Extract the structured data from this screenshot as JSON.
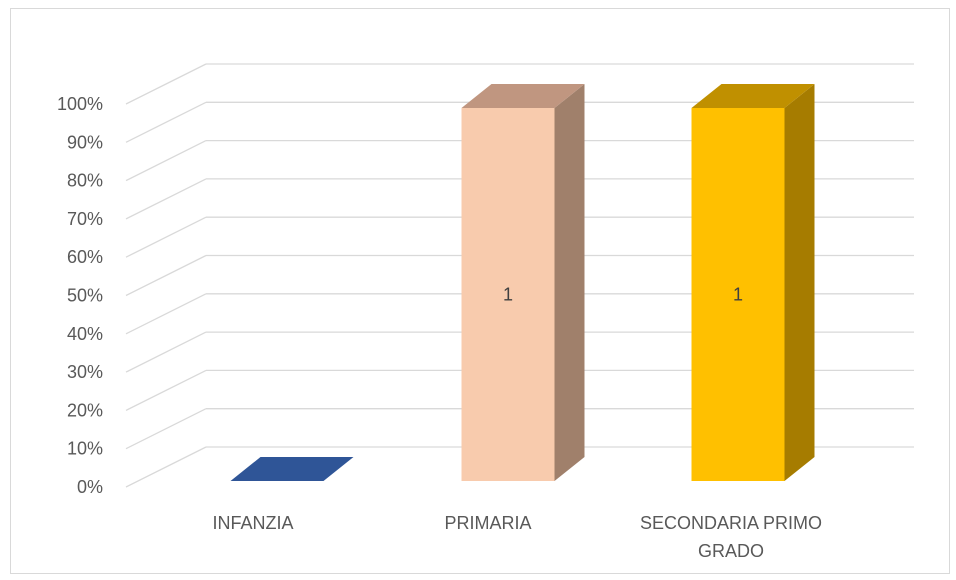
{
  "chart_data": {
    "type": "bar",
    "style": "3d-column",
    "categories": [
      "INFANZIA",
      "PRIMARIA",
      "SECONDARIA PRIMO GRADO"
    ],
    "values": [
      0,
      1,
      1
    ],
    "data_labels": [
      "",
      "1",
      "1"
    ],
    "ylim": [
      0,
      1
    ],
    "y_tick_values": [
      0,
      0.1,
      0.2,
      0.3,
      0.4,
      0.5,
      0.6,
      0.7,
      0.8,
      0.9,
      1.0
    ],
    "y_tick_labels": [
      "0%",
      "10%",
      "20%",
      "30%",
      "40%",
      "50%",
      "60%",
      "70%",
      "80%",
      "90%",
      "100%"
    ],
    "grid": true,
    "legend": "none",
    "colors": [
      {
        "front": "#2f5597",
        "side": "#203864",
        "top": "#2f5597"
      },
      {
        "front": "#f8cbad",
        "side": "#a0806b",
        "top": "#c09680"
      },
      {
        "front": "#ffc000",
        "side": "#a67c00",
        "top": "#c09000"
      }
    ]
  }
}
